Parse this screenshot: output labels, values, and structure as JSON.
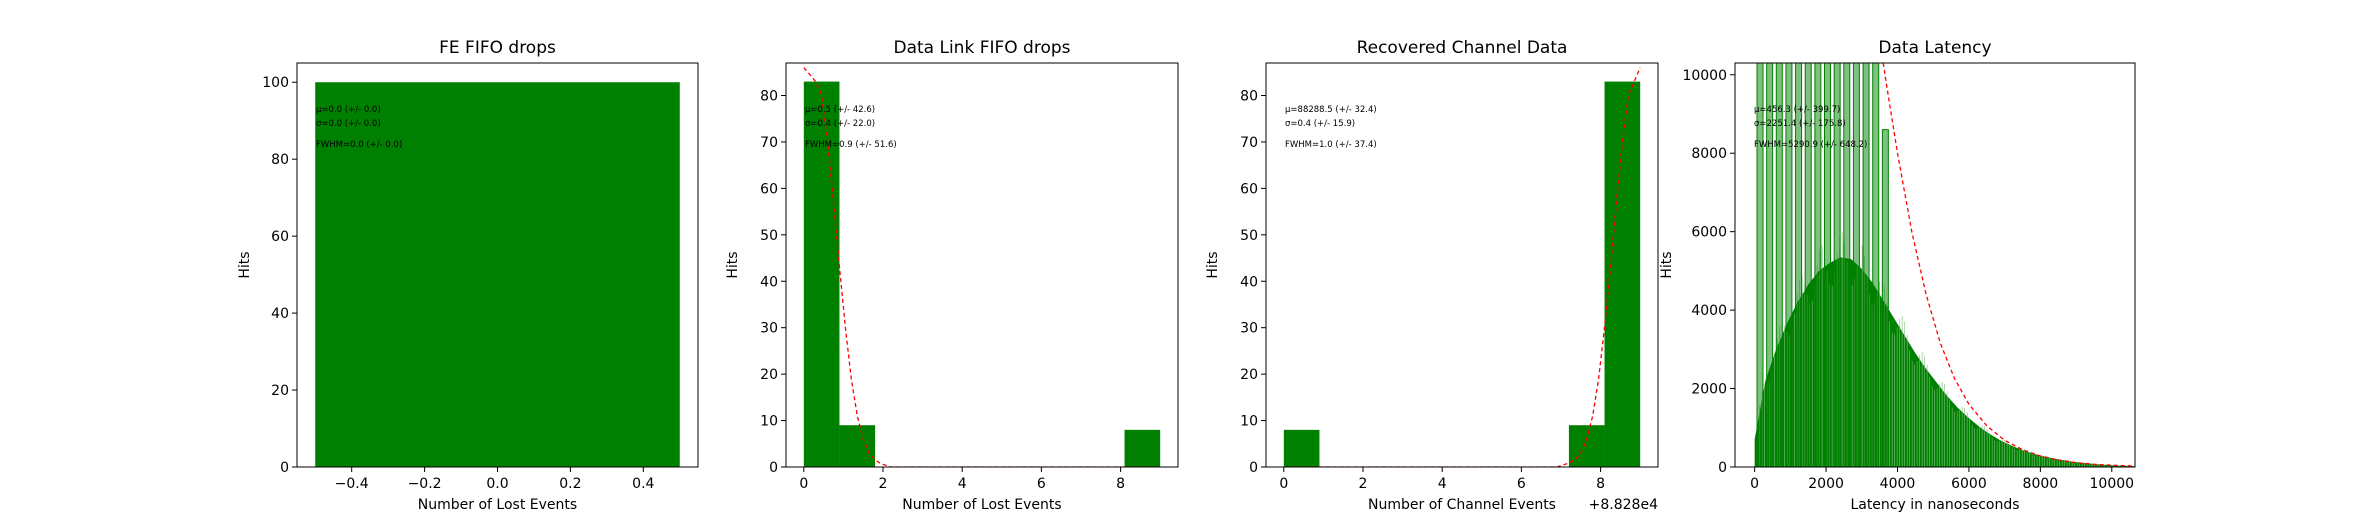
{
  "chart_data": [
    {
      "type": "bar",
      "title": "FE FIFO drops",
      "xlabel": "Number of Lost Events",
      "ylabel": "Hits",
      "xlim": [
        -0.55,
        0.55
      ],
      "ylim": [
        0,
        105
      ],
      "xticks": [
        -0.4,
        -0.2,
        0.0,
        0.2,
        0.4
      ],
      "xtick_labels": [
        "−0.4",
        "−0.2",
        "0.0",
        "0.2",
        "0.4"
      ],
      "yticks": [
        0,
        20,
        40,
        60,
        80,
        100
      ],
      "ytick_labels": [
        "0",
        "20",
        "40",
        "60",
        "80",
        "100"
      ],
      "bars": [
        {
          "x0": -0.5,
          "x1": 0.5,
          "value": 100
        }
      ],
      "fit_curve": [],
      "annotations": [
        "μ=0.0 (+/- 0.0)",
        "σ=0.0 (+/- 0.0)",
        "FWHM=0.0 (+/- 0.0)"
      ],
      "bar_color": "#008000",
      "fit_color": "#ff0000"
    },
    {
      "type": "bar",
      "title": "Data Link FIFO drops",
      "xlabel": "Number of Lost Events",
      "ylabel": "Hits",
      "xlim": [
        -0.45,
        9.45
      ],
      "ylim": [
        0,
        87
      ],
      "xticks": [
        0,
        2,
        4,
        6,
        8
      ],
      "xtick_labels": [
        "0",
        "2",
        "4",
        "6",
        "8"
      ],
      "yticks": [
        0,
        10,
        20,
        30,
        40,
        50,
        60,
        70,
        80
      ],
      "ytick_labels": [
        "0",
        "10",
        "20",
        "30",
        "40",
        "50",
        "60",
        "70",
        "80"
      ],
      "bars": [
        {
          "x0": 0.0,
          "x1": 0.9,
          "value": 83
        },
        {
          "x0": 0.9,
          "x1": 1.8,
          "value": 9
        },
        {
          "x0": 8.1,
          "x1": 9.0,
          "value": 8
        }
      ],
      "fit_curve": [
        [
          0.0,
          86
        ],
        [
          0.3,
          83
        ],
        [
          0.45,
          80
        ],
        [
          0.6,
          70
        ],
        [
          0.75,
          57
        ],
        [
          0.9,
          43
        ],
        [
          1.05,
          30
        ],
        [
          1.2,
          19
        ],
        [
          1.35,
          11
        ],
        [
          1.5,
          6
        ],
        [
          1.65,
          3
        ],
        [
          1.8,
          1.5
        ],
        [
          1.95,
          0.7
        ],
        [
          2.2,
          0
        ],
        [
          9.0,
          0
        ]
      ],
      "annotations": [
        "μ=0.5 (+/- 42.6)",
        "σ=0.4 (+/- 22.0)",
        "FWHM=0.9 (+/- 51.6)"
      ],
      "bar_color": "#008000",
      "fit_color": "#ff0000"
    },
    {
      "type": "bar",
      "title": "Recovered Channel Data",
      "xlabel": "Number of Channel Events",
      "ylabel": "Hits",
      "axis_offset_label": "+8.828e4",
      "xlim": [
        -0.45,
        9.45
      ],
      "ylim": [
        0,
        87
      ],
      "xticks": [
        0,
        2,
        4,
        6,
        8
      ],
      "xtick_labels": [
        "0",
        "2",
        "4",
        "6",
        "8"
      ],
      "yticks": [
        0,
        10,
        20,
        30,
        40,
        50,
        60,
        70,
        80
      ],
      "ytick_labels": [
        "0",
        "10",
        "20",
        "30",
        "40",
        "50",
        "60",
        "70",
        "80"
      ],
      "bars": [
        {
          "x0": 0.0,
          "x1": 0.9,
          "value": 8
        },
        {
          "x0": 7.2,
          "x1": 8.1,
          "value": 9
        },
        {
          "x0": 8.1,
          "x1": 9.0,
          "value": 83
        }
      ],
      "fit_curve": [
        [
          0.0,
          0
        ],
        [
          6.9,
          0
        ],
        [
          7.15,
          0.7
        ],
        [
          7.35,
          1.5
        ],
        [
          7.5,
          3
        ],
        [
          7.65,
          6
        ],
        [
          7.8,
          11
        ],
        [
          7.95,
          19
        ],
        [
          8.1,
          30
        ],
        [
          8.25,
          43
        ],
        [
          8.4,
          57
        ],
        [
          8.55,
          70
        ],
        [
          8.7,
          80
        ],
        [
          8.85,
          83
        ],
        [
          9.0,
          86
        ]
      ],
      "annotations": [
        "μ=88288.5 (+/- 32.4)",
        "σ=0.4 (+/- 15.9)",
        "FWHM=1.0 (+/- 37.4)"
      ],
      "bar_color": "#008000",
      "fit_color": "#ff0000"
    },
    {
      "type": "histogram",
      "title": "Data Latency",
      "xlabel": "Latency in nanoseconds",
      "ylabel": "Hits",
      "xlim": [
        -550,
        10650
      ],
      "ylim": [
        0,
        10300
      ],
      "xticks": [
        0,
        2000,
        4000,
        6000,
        8000,
        10000
      ],
      "xtick_labels": [
        "0",
        "2000",
        "4000",
        "6000",
        "8000",
        "10000"
      ],
      "yticks": [
        0,
        2000,
        4000,
        6000,
        8000,
        10000
      ],
      "ytick_labels": [
        "0",
        "2000",
        "4000",
        "6000",
        "8000",
        "10000"
      ],
      "envelope": [
        [
          0,
          700
        ],
        [
          300,
          2200
        ],
        [
          600,
          3000
        ],
        [
          900,
          3650
        ],
        [
          1200,
          4200
        ],
        [
          1500,
          4650
        ],
        [
          1800,
          5000
        ],
        [
          2100,
          5200
        ],
        [
          2400,
          5350
        ],
        [
          2700,
          5300
        ],
        [
          3000,
          5050
        ],
        [
          3300,
          4700
        ],
        [
          3600,
          4250
        ],
        [
          3900,
          3800
        ],
        [
          4200,
          3350
        ],
        [
          4500,
          2900
        ],
        [
          4800,
          2500
        ],
        [
          5100,
          2150
        ],
        [
          5400,
          1800
        ],
        [
          5700,
          1500
        ],
        [
          6000,
          1250
        ],
        [
          6300,
          1020
        ],
        [
          6600,
          830
        ],
        [
          6900,
          670
        ],
        [
          7200,
          540
        ],
        [
          7500,
          430
        ],
        [
          7800,
          340
        ],
        [
          8100,
          270
        ],
        [
          8400,
          210
        ],
        [
          8700,
          165
        ],
        [
          9000,
          125
        ],
        [
          9300,
          95
        ],
        [
          9600,
          70
        ],
        [
          9900,
          50
        ],
        [
          10200,
          35
        ],
        [
          10500,
          25
        ],
        [
          10650,
          20
        ]
      ],
      "spikes": [
        [
          150,
          10300
        ],
        [
          420,
          10300
        ],
        [
          690,
          10300
        ],
        [
          960,
          10300
        ],
        [
          1230,
          10300
        ],
        [
          1500,
          10300
        ],
        [
          1770,
          10300
        ],
        [
          2040,
          10300
        ],
        [
          2310,
          10300
        ],
        [
          2580,
          10300
        ],
        [
          2850,
          10300
        ],
        [
          3120,
          10300
        ],
        [
          3390,
          10300
        ],
        [
          3660,
          8600
        ]
      ],
      "fit_curve": [
        [
          3600,
          10300
        ],
        [
          3700,
          9700
        ],
        [
          4000,
          8000
        ],
        [
          4400,
          6000
        ],
        [
          4800,
          4400
        ],
        [
          5200,
          3150
        ],
        [
          5600,
          2250
        ],
        [
          6000,
          1600
        ],
        [
          6500,
          1050
        ],
        [
          7000,
          680
        ],
        [
          7500,
          440
        ],
        [
          8000,
          280
        ],
        [
          8500,
          180
        ],
        [
          9000,
          110
        ],
        [
          9500,
          70
        ],
        [
          10000,
          45
        ],
        [
          10650,
          25
        ]
      ],
      "annotations": [
        "μ=456.3 (+/- 399.7)",
        "σ=2251.4 (+/- 175.8)",
        "FWHM=5290.9 (+/- 648.2)"
      ],
      "bar_color": "#008000",
      "fit_color": "#ff0000"
    }
  ]
}
